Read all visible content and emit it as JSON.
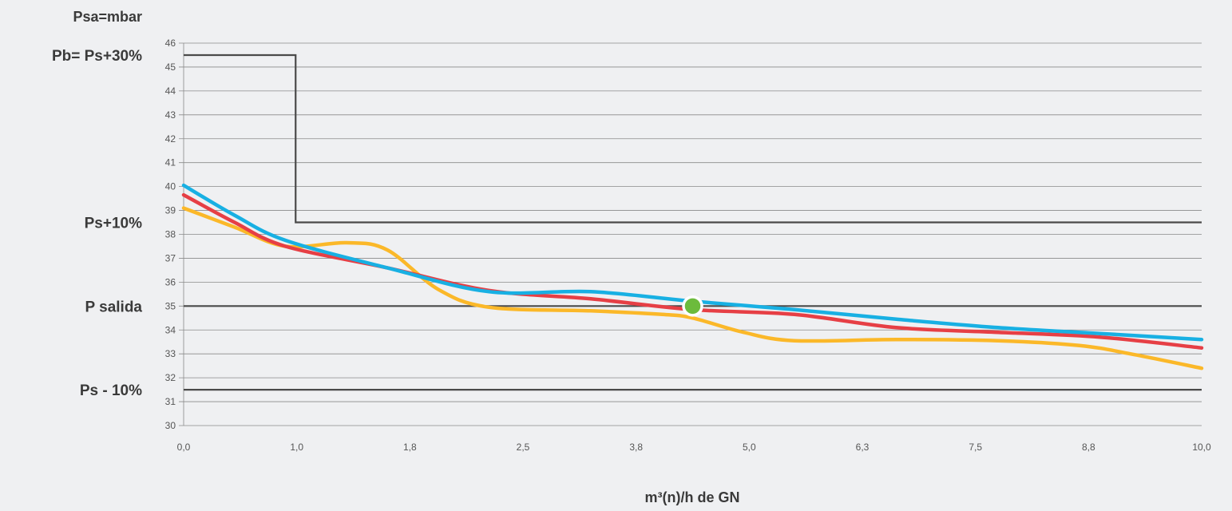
{
  "chart_data": {
    "type": "line",
    "title": "",
    "ylabel": "Psa=mbar",
    "xlabel": "m³(n)/h de GN",
    "ylim": [
      30,
      46
    ],
    "xlim": [
      0,
      10
    ],
    "grid": true,
    "x_tick_labels": [
      "0,0",
      "1,0",
      "1,8",
      "2,5",
      "3,8",
      "5,0",
      "6,3",
      "7,5",
      "8,8",
      "10,0"
    ],
    "y_ticks": [
      30,
      31,
      32,
      33,
      34,
      35,
      36,
      37,
      38,
      39,
      40,
      41,
      42,
      43,
      44,
      45,
      46
    ],
    "reference_labels": [
      {
        "text": "Pb= Ps+30%",
        "value": 45.5
      },
      {
        "text": "Ps+10%",
        "value": 38.5
      },
      {
        "text": "P salida",
        "value": 35
      },
      {
        "text": "Ps - 10%",
        "value": 31.5
      }
    ],
    "reference_lines": {
      "lockout_step": {
        "x": [
          0,
          1.1,
          1.1,
          10
        ],
        "y": [
          45.5,
          45.5,
          38.5,
          38.5
        ]
      },
      "outlet_pressure": 35,
      "lower_limit": 31.5
    },
    "series": [
      {
        "color": "#fbb829",
        "x": [
          0,
          0.5,
          1.0,
          1.6,
          2.0,
          2.5,
          3.0,
          4.0,
          4.7,
          5.0,
          5.5,
          6.0,
          7.0,
          8.0,
          8.8,
          9.3,
          10.0
        ],
        "y": [
          39.1,
          38.3,
          37.5,
          37.65,
          37.35,
          35.7,
          34.95,
          34.8,
          34.65,
          34.5,
          33.9,
          33.55,
          33.6,
          33.55,
          33.35,
          33.0,
          32.4
        ]
      },
      {
        "color": "#e63f45",
        "x": [
          0,
          0.5,
          1.0,
          2.0,
          3.0,
          4.0,
          5.0,
          6.0,
          7.0,
          8.0,
          9.0,
          10.0
        ],
        "y": [
          39.65,
          38.5,
          37.5,
          36.6,
          35.65,
          35.3,
          34.85,
          34.65,
          34.1,
          33.9,
          33.7,
          33.25
        ]
      },
      {
        "color": "#18b0e3",
        "x": [
          0,
          0.5,
          1.0,
          2.0,
          3.0,
          4.0,
          5.0,
          6.0,
          7.0,
          8.0,
          9.0,
          10.0
        ],
        "y": [
          40.05,
          38.8,
          37.75,
          36.6,
          35.6,
          35.6,
          35.2,
          34.85,
          34.45,
          34.1,
          33.85,
          33.6
        ]
      }
    ],
    "marker": {
      "x": 5.0,
      "y": 35.0,
      "color": "#6cbb3c"
    }
  }
}
